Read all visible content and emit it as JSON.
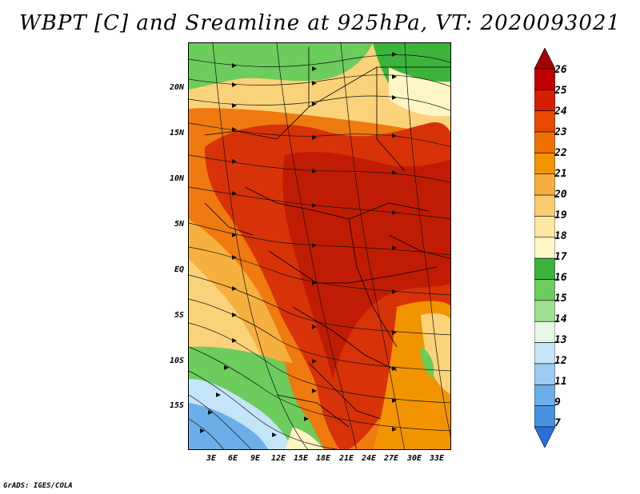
{
  "title": "WBPT [C] and Sreamline at 925hPa, VT: 2020093021",
  "credit": "GrADS: IGES/COLA",
  "map": {
    "lat_labels": [
      "20N",
      "15N",
      "10N",
      "5N",
      "EQ",
      "5S",
      "10S",
      "15S"
    ],
    "lon_labels": [
      "3E",
      "6E",
      "9E",
      "12E",
      "15E",
      "18E",
      "21E",
      "24E",
      "27E",
      "30E",
      "33E"
    ],
    "field": "Wet-bulb potential temperature",
    "overlay": "Streamlines"
  },
  "colorbar": {
    "labels": [
      "26",
      "25",
      "24",
      "23",
      "22",
      "21",
      "20",
      "19",
      "18",
      "17",
      "16",
      "15",
      "14",
      "13",
      "12",
      "11",
      "9",
      "7"
    ],
    "colors": [
      "#a50000",
      "#c00000",
      "#d81e00",
      "#e84a00",
      "#ee7000",
      "#f29400",
      "#f6b040",
      "#facc70",
      "#fce8a0",
      "#fdf6c4",
      "#3cb43c",
      "#6ccc5c",
      "#a0e090",
      "#e4f8e4",
      "#c4e4f8",
      "#9ccaf0",
      "#6caee8",
      "#4892e0",
      "#2870d8"
    ]
  }
}
